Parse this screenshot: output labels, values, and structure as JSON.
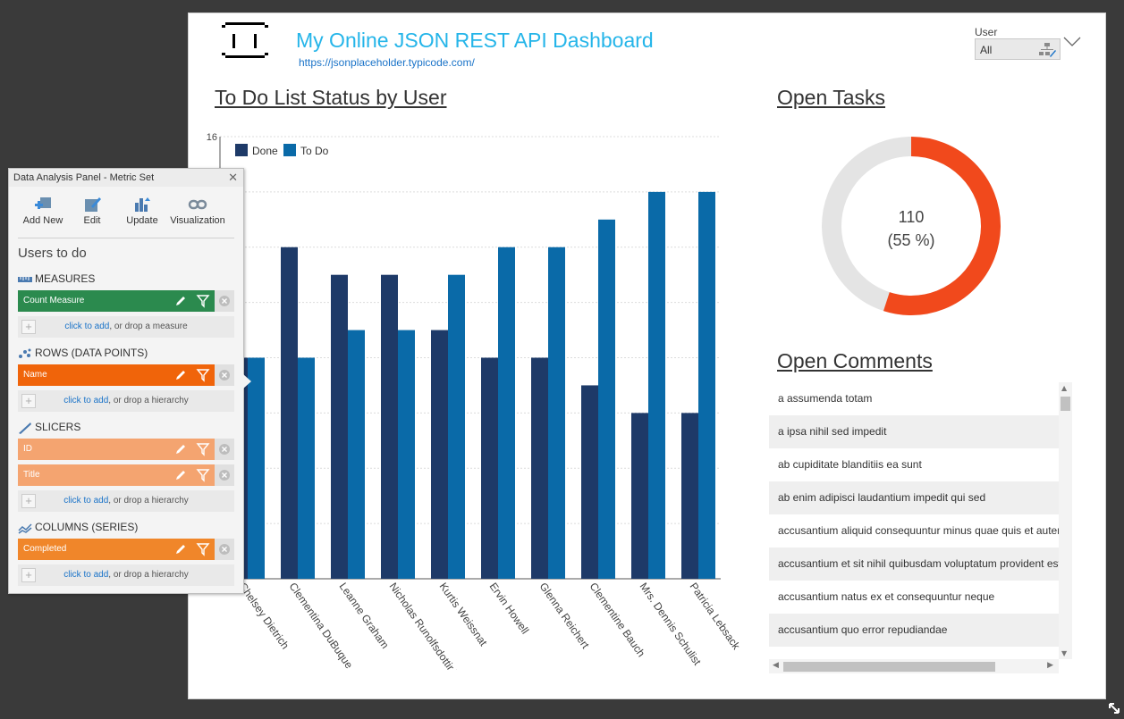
{
  "header": {
    "title": "My Online JSON REST API Dashboard",
    "subtitle": "https://jsonplaceholder.typicode.com/"
  },
  "user_filter": {
    "label": "User",
    "value": "All"
  },
  "sections": {
    "todo": "To Do List Status by User",
    "open_tasks": "Open Tasks",
    "open_comments": "Open Comments"
  },
  "chart_data": {
    "type": "bar",
    "categories": [
      "Chelsey Dietrich",
      "Clementina DuBuque",
      "Leanne Graham",
      "Nicholas Runolfsdottir V",
      "Kurtis Weissnat",
      "Ervin Howell",
      "Glenna Reichert",
      "Clementine Bauch",
      "Mrs. Dennis Schulist",
      "Patricia Lebsack"
    ],
    "series": [
      {
        "name": "Done",
        "color": "#1e3a68",
        "values": [
          8,
          12,
          11,
          11,
          9,
          8,
          8,
          7,
          6,
          6
        ]
      },
      {
        "name": "To Do",
        "color": "#0a6aa8",
        "values": [
          8,
          8,
          9,
          9,
          11,
          12,
          12,
          13,
          14,
          14
        ]
      }
    ],
    "ylim": [
      0,
      16
    ],
    "ytick_label": "16",
    "grid": true,
    "legend": "top-left"
  },
  "donut": {
    "value": "110",
    "percent_label": "(55 %)",
    "fraction": 0.55,
    "fill_color": "#f1491c",
    "rest_color": "#e4e4e4"
  },
  "comments": [
    "a assumenda totam",
    "a ipsa nihil sed impedit",
    "ab cupiditate blanditiis ea sunt",
    "ab enim adipisci laudantium impedit qui sed",
    "accusantium aliquid consequuntur minus quae quis et autem",
    "accusantium et sit nihil quibusdam voluptatum provident est",
    "accusantium natus ex et consequuntur neque",
    "accusantium quo error repudiandae"
  ],
  "panel": {
    "title": "Data Analysis Panel - Metric Set",
    "toolbar": [
      "Add New",
      "Edit",
      "Update",
      "Visualization"
    ],
    "metric_set_title": "Users to do",
    "measures_label": "MEASURES",
    "measure": "Count Measure",
    "rows_label": "ROWS (DATA POINTS)",
    "row": "Name",
    "slicers_label": "SLICERS",
    "slicers": [
      "ID",
      "Title"
    ],
    "columns_label": "COLUMNS (SERIES)",
    "column": "Completed",
    "add_link": "click to add",
    "drop_measure": ", or drop a measure",
    "drop_hierarchy": ", or drop a hierarchy",
    "colors": {
      "measure": "#2b8a4e",
      "row": "#f0640a",
      "slicer": "#f4a470",
      "column": "#f0862a"
    }
  }
}
